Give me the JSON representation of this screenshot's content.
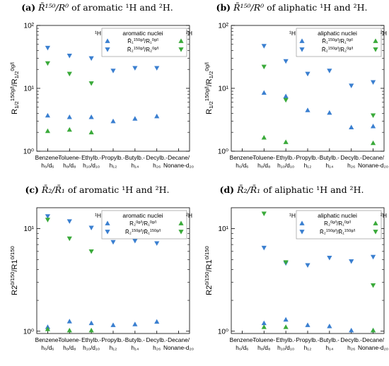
{
  "panels": [
    {
      "label": "(a)",
      "caption_rest": "of aromatic ¹H and ²H.",
      "title_math": "R̄¹⁵⁰/R⁰",
      "ylabel": "R_{1/2}^{150g/l}/R_{1/2}^{0g/l}",
      "legend_title": "aromatic nuclei",
      "legend_left": "¹H",
      "legend_right": "²H",
      "legend_rows": [
        "R̄₁^{150g/l}/R₁^{0g/l}",
        "R̄₂^{150g/l}/R₂^{0g/l}"
      ]
    },
    {
      "label": "(b)",
      "caption_rest": "of aliphatic ¹H and ²H.",
      "title_math": "R̄¹⁵⁰/R⁰",
      "ylabel": "R_{1/2}^{150g/l}/R_{1/2}^{0g/l}",
      "legend_title": "aliphatic nuclei",
      "legend_left": "¹H",
      "legend_right": "²H",
      "legend_rows": [
        "R̄₁^{150g/l}/R₁^{0g/l}",
        "R̄₂^{150g/l}/R₂^{0g/l}"
      ]
    },
    {
      "label": "(c)",
      "caption_rest": "of aromatic ¹H and ²H.",
      "title_math": "R̄₂/R̄₁",
      "ylabel": "R_2^{0/150}/R_1^{0/150}",
      "legend_title": "aromatic nuclei",
      "legend_left": "¹H",
      "legend_right": "²H",
      "legend_rows": [
        "R₂^{0g/l}/R₁^{0g/l}",
        "R̄₂^{150g/l}/R̄₁^{150g/l}"
      ]
    },
    {
      "label": "(d)",
      "caption_rest": "of aliphatic ¹H and ²H.",
      "title_math": "R̄₂/R̄₁",
      "ylabel": "R_2^{0/150}/R_1^{0/150}",
      "legend_title": "aliphatic nuclei",
      "legend_left": "¹H",
      "legend_right": "²H",
      "legend_rows": [
        "R₂^{0g/l}/R₁^{0g/l}",
        "R̄₂^{150g/l}/R̄₁^{150g/l}"
      ]
    }
  ],
  "categories": [
    [
      "Benzene-",
      "h₆/d₆"
    ],
    [
      "Toluene-",
      "h₈/d₈"
    ],
    [
      "Ethylb.-",
      "h₁₀/d₁₀"
    ],
    [
      "Propylb.-",
      "h₁₂"
    ],
    [
      "Butylb.-",
      "h₁₄"
    ],
    [
      "Decylb.-",
      "h₂₆"
    ],
    [
      "Decane/",
      "Nonane-d₂₀"
    ]
  ],
  "colors": {
    "blue": "#3a7fd0",
    "green": "#3aaa3a"
  },
  "chart_data": [
    {
      "type": "scatter",
      "yscale": "log",
      "ylim": [
        1,
        100
      ],
      "yticks": [
        1,
        10,
        100
      ],
      "ytick_labels": [
        "10⁰",
        "10¹",
        "10²"
      ],
      "series": [
        {
          "values": [
            3.7,
            3.5,
            3.5,
            3.0,
            3.3,
            3.6,
            null
          ],
          "marker": "up",
          "color": "blue"
        },
        {
          "values": [
            44,
            33,
            30,
            19,
            21,
            21,
            null
          ],
          "marker": "down",
          "color": "blue"
        },
        {
          "values": [
            2.1,
            2.2,
            2.0,
            null,
            null,
            null,
            null
          ],
          "marker": "up",
          "color": "green"
        },
        {
          "values": [
            25,
            17,
            12,
            null,
            null,
            null,
            null
          ],
          "marker": "down",
          "color": "green"
        }
      ]
    },
    {
      "type": "scatter",
      "yscale": "log",
      "ylim": [
        1,
        100
      ],
      "yticks": [
        1,
        10,
        100
      ],
      "ytick_labels": [
        "10⁰",
        "10¹",
        "10²"
      ],
      "series": [
        {
          "values": [
            null,
            8.5,
            7.5,
            4.5,
            4.1,
            2.4,
            2.5
          ],
          "marker": "up",
          "color": "blue"
        },
        {
          "values": [
            null,
            47,
            27,
            17,
            19,
            11,
            12.5
          ],
          "marker": "down",
          "color": "blue"
        },
        {
          "values": [
            null,
            1.65,
            1.4,
            null,
            null,
            null,
            1.35
          ],
          "marker": "up",
          "color": "green"
        },
        {
          "values": [
            null,
            22,
            6.5,
            null,
            null,
            null,
            3.7
          ],
          "marker": "down",
          "color": "green"
        }
      ]
    },
    {
      "type": "scatter",
      "yscale": "log",
      "ylim": [
        0.95,
        16
      ],
      "yticks": [
        1,
        10
      ],
      "ytick_labels": [
        "10⁰",
        "10¹"
      ],
      "series": [
        {
          "values": [
            1.1,
            1.25,
            1.2,
            1.15,
            1.17,
            1.24,
            null
          ],
          "marker": "up",
          "color": "blue"
        },
        {
          "values": [
            13.2,
            11.8,
            10.2,
            7.4,
            7.6,
            7.2,
            null
          ],
          "marker": "down",
          "color": "blue"
        },
        {
          "values": [
            1.05,
            1.02,
            1.02,
            null,
            null,
            null,
            null
          ],
          "marker": "up",
          "color": "green"
        },
        {
          "values": [
            12.2,
            8.0,
            6.0,
            null,
            null,
            null,
            null
          ],
          "marker": "down",
          "color": "green"
        }
      ]
    },
    {
      "type": "scatter",
      "yscale": "log",
      "ylim": [
        0.95,
        16
      ],
      "yticks": [
        1,
        10
      ],
      "ytick_labels": [
        "10⁰",
        "10¹"
      ],
      "series": [
        {
          "values": [
            null,
            1.2,
            1.3,
            1.15,
            1.12,
            1.02,
            1.02
          ],
          "marker": "up",
          "color": "blue"
        },
        {
          "values": [
            null,
            6.5,
            4.6,
            4.4,
            5.2,
            4.8,
            5.3
          ],
          "marker": "down",
          "color": "blue"
        },
        {
          "values": [
            null,
            1.1,
            1.1,
            null,
            null,
            null,
            1.02
          ],
          "marker": "up",
          "color": "green"
        },
        {
          "values": [
            null,
            14,
            4.7,
            null,
            null,
            null,
            2.8
          ],
          "marker": "down",
          "color": "green"
        }
      ]
    }
  ]
}
